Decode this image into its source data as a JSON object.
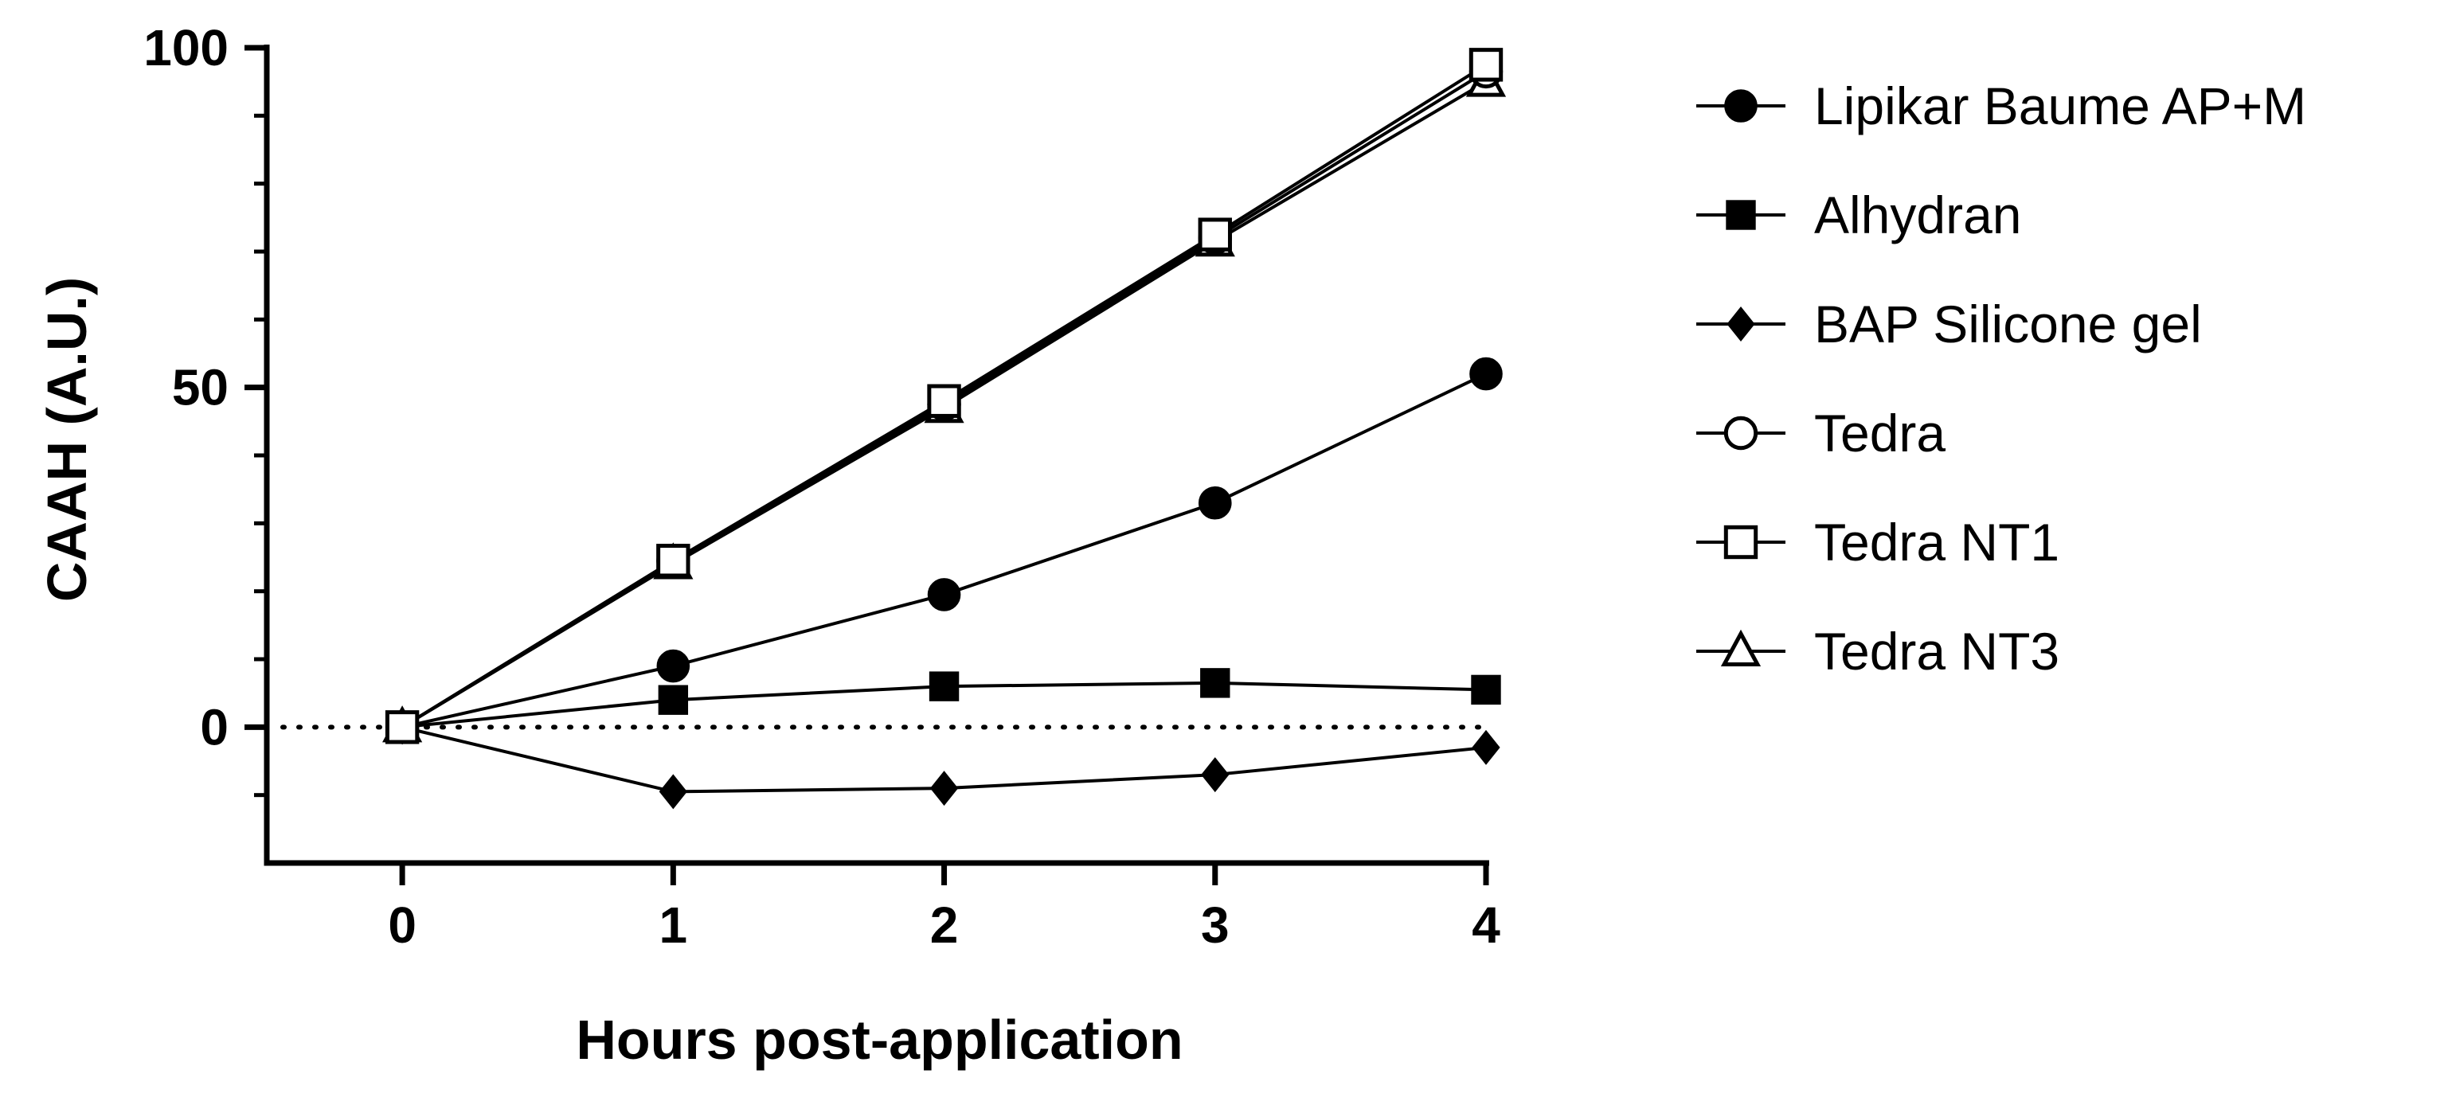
{
  "chart_data": {
    "type": "line",
    "title": "",
    "xlabel": "Hours post-application",
    "ylabel": "CAAH (A.U.)",
    "x": [
      0,
      1,
      2,
      3,
      4
    ],
    "x_tick_labels": [
      "0",
      "1",
      "2",
      "3",
      "4"
    ],
    "xlim": [
      -0.5,
      4
    ],
    "ylim": [
      -20,
      100
    ],
    "y_tick_labels": [
      "0",
      "50",
      "100"
    ],
    "y_ticks": [
      0,
      50,
      100
    ],
    "y_minor_ticks": [
      -10,
      10,
      20,
      30,
      40,
      60,
      70,
      80,
      90
    ],
    "reference_line": {
      "y": 0,
      "style": "dotted"
    },
    "grid": false,
    "legend_position": "right",
    "series": [
      {
        "name": "Lipikar Baume AP+M",
        "marker": "filled-circle",
        "values": [
          0,
          9,
          19.5,
          33,
          52
        ]
      },
      {
        "name": "Alhydran",
        "marker": "filled-square",
        "values": [
          0,
          4,
          6,
          6.5,
          5.5
        ]
      },
      {
        "name": "BAP Silicone gel",
        "marker": "filled-diamond",
        "values": [
          0,
          -9.5,
          -9,
          -7,
          -3
        ]
      },
      {
        "name": "Tedra",
        "marker": "open-circle",
        "values": [
          0,
          24.5,
          47.5,
          72,
          96.5
        ]
      },
      {
        "name": "Tedra NT1",
        "marker": "open-square",
        "values": [
          0,
          24.5,
          48,
          72.5,
          97.5
        ]
      },
      {
        "name": "Tedra NT3",
        "marker": "open-triangle",
        "values": [
          0,
          24,
          47,
          71.5,
          95
        ]
      }
    ]
  }
}
